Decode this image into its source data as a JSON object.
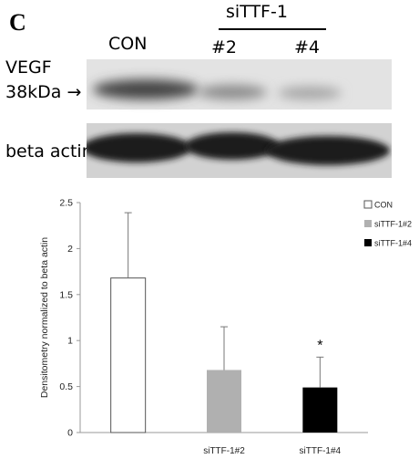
{
  "figure": {
    "panel_letter": "C",
    "group_label": "siTTF-1",
    "lanes": [
      "CON",
      "#2",
      "#4"
    ],
    "vegf_label": "VEGF",
    "kda_label": "38kDa",
    "arrow": "→",
    "beta_label": "beta actin"
  },
  "chart_data": {
    "type": "bar",
    "categories": [
      "CON",
      "siTTF-1#2",
      "siTTF-1#4"
    ],
    "tick_labels": [
      "",
      "siTTF-1#2",
      "siTTF-1#4"
    ],
    "values": [
      1.68,
      0.68,
      0.49
    ],
    "errors": [
      0.71,
      0.47,
      0.33
    ],
    "colors": [
      "#ffffff",
      "#b0b0b0",
      "#000000"
    ],
    "ylabel": "Densitometry normalized to beta actin",
    "xlabel": "",
    "ylim": [
      0,
      2.5
    ],
    "yticks": [
      "0",
      "0.5",
      "1",
      "1.5",
      "2",
      "2.5"
    ],
    "legend": [
      {
        "label": "CON",
        "color": "#ffffff"
      },
      {
        "label": "siTTF-1#2",
        "color": "#b0b0b0"
      },
      {
        "label": "siTTF-1#4",
        "color": "#000000"
      }
    ],
    "legend_position": "top-right",
    "significance": {
      "category": "siTTF-1#4",
      "mark": "*"
    },
    "grid": false
  }
}
